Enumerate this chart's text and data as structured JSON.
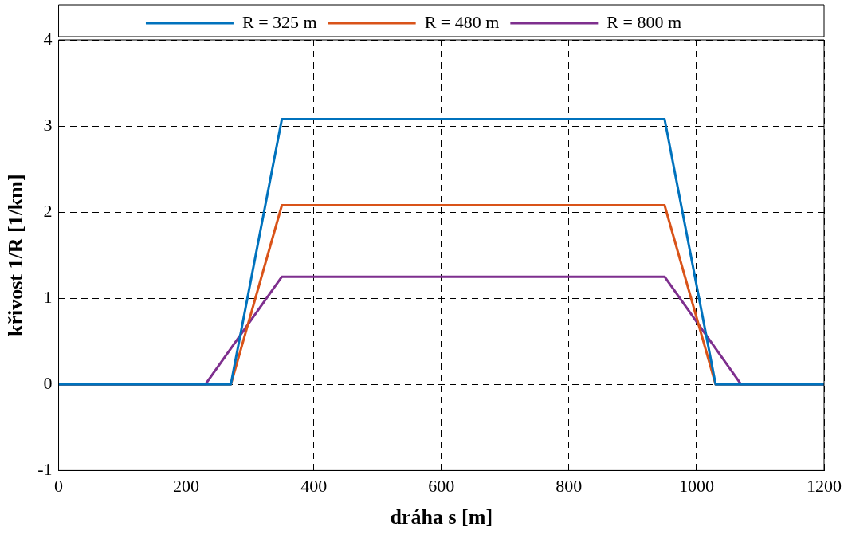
{
  "chart_data": {
    "type": "line",
    "xlabel": "dráha s [m]",
    "ylabel": "křivost 1/R [1/km]",
    "xlim": [
      0,
      1200
    ],
    "xticks": [
      0,
      200,
      400,
      600,
      800,
      1000,
      1200
    ],
    "ylim": [
      -1,
      4
    ],
    "yticks": [
      -1,
      0,
      1,
      2,
      3,
      4
    ],
    "grid": true,
    "legend": "top",
    "marker": "none",
    "line_style": "solid",
    "series": [
      {
        "name": "R = 325 m",
        "color": "#0072bd",
        "x": [
          0,
          270,
          350,
          950,
          1030,
          1200
        ],
        "values": [
          0,
          0,
          3.08,
          3.08,
          0,
          0
        ]
      },
      {
        "name": "R = 480 m",
        "color": "#d95319",
        "x": [
          0,
          270,
          350,
          950,
          1030,
          1200
        ],
        "values": [
          0,
          0,
          2.08,
          2.08,
          0,
          0
        ]
      },
      {
        "name": "R = 800 m",
        "color": "#7e2f8e",
        "x": [
          0,
          230,
          350,
          950,
          1070,
          1200
        ],
        "values": [
          0,
          0,
          1.25,
          1.25,
          0,
          0
        ]
      }
    ]
  }
}
